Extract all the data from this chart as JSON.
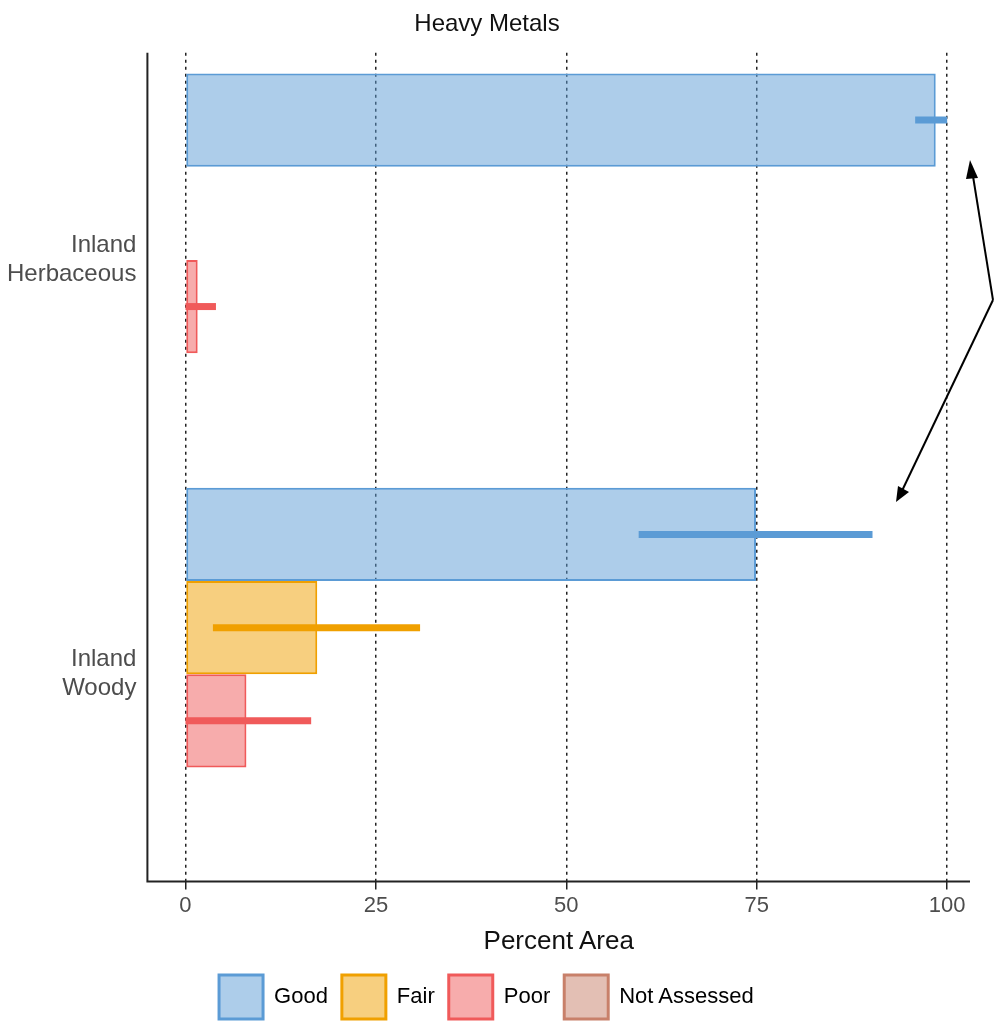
{
  "chart_data": {
    "type": "bar",
    "title": "Heavy Metals",
    "xlabel": "Percent Area",
    "orientation": "horizontal",
    "categories": [
      "Inland\nHerbaceous",
      "Inland\nWoody"
    ],
    "series": [
      {
        "name": "Good",
        "color": "#5b9bd5",
        "values": [
          98.5,
          74.9
        ],
        "errors": [
          [
            95.8,
            100
          ],
          [
            59.5,
            90.2
          ]
        ]
      },
      {
        "name": "Fair",
        "color": "#f0a000",
        "values": [
          0,
          17.3
        ],
        "errors": [
          null,
          [
            3.6,
            30.8
          ]
        ]
      },
      {
        "name": "Poor",
        "color": "#f05a5a",
        "values": [
          1.6,
          8.0
        ],
        "errors": [
          [
            0,
            4.0
          ],
          [
            0,
            16.5
          ]
        ]
      },
      {
        "name": "Not Assessed",
        "color": "#c8806a",
        "values": [
          0,
          0
        ],
        "errors": [
          null,
          null
        ]
      }
    ],
    "xlim": [
      -5,
      103
    ],
    "xticks": [
      0,
      25,
      50,
      75,
      100
    ],
    "grid": "x",
    "legend": "bottom"
  }
}
